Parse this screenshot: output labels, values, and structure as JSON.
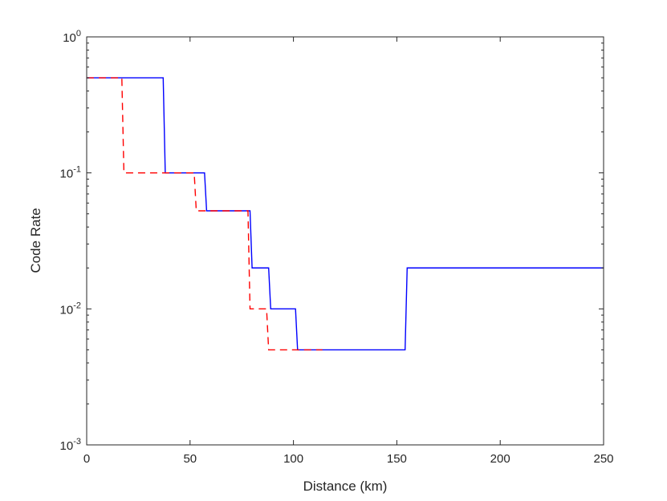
{
  "chart_data": {
    "type": "line",
    "xlabel": "Distance (km)",
    "ylabel": "Code Rate",
    "xlim": [
      0,
      250
    ],
    "ylim": [
      0.001,
      1
    ],
    "y_scale": "log",
    "grid": false,
    "x_ticks": [
      {
        "value": 0,
        "label": "0"
      },
      {
        "value": 50,
        "label": "50"
      },
      {
        "value": 100,
        "label": "100"
      },
      {
        "value": 150,
        "label": "150"
      },
      {
        "value": 200,
        "label": "200"
      },
      {
        "value": 250,
        "label": "250"
      }
    ],
    "y_ticks": [
      {
        "value": 1,
        "base": "10",
        "exp": "0"
      },
      {
        "value": 0.1,
        "base": "10",
        "exp": "-1"
      },
      {
        "value": 0.01,
        "base": "10",
        "exp": "-2"
      },
      {
        "value": 0.001,
        "base": "10",
        "exp": "-3"
      }
    ],
    "series": [
      {
        "color": "#0000ff",
        "dash": "solid",
        "x": [
          0,
          37,
          38,
          57,
          58,
          79,
          80,
          88,
          89,
          101,
          102,
          154,
          155,
          250
        ],
        "y": [
          0.5,
          0.5,
          0.1,
          0.1,
          0.0526,
          0.0526,
          0.02,
          0.02,
          0.01,
          0.01,
          0.005,
          0.005,
          0.02,
          0.02
        ]
      },
      {
        "color": "#ff0000",
        "dash": "dashed",
        "x": [
          0,
          17,
          18,
          52,
          53,
          78,
          79,
          87,
          88,
          114
        ],
        "y": [
          0.5,
          0.5,
          0.1,
          0.1,
          0.0526,
          0.0526,
          0.01,
          0.01,
          0.005,
          0.005
        ]
      }
    ]
  }
}
